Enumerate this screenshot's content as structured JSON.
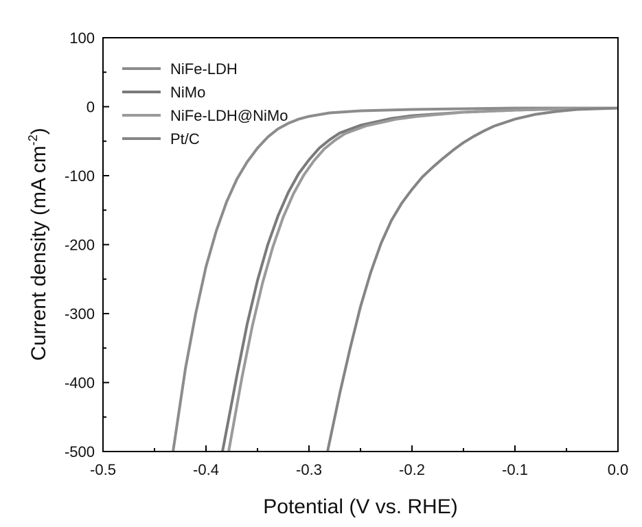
{
  "chart_data": {
    "type": "line",
    "title": "",
    "xlabel": "Potential (V vs. RHE)",
    "ylabel_main": "Current density (mA cm",
    "ylabel_sup": "-2",
    "ylabel_close": ")",
    "xlim": [
      -0.5,
      0.0
    ],
    "ylim": [
      -500,
      100
    ],
    "xticks": [
      -0.5,
      -0.4,
      -0.3,
      -0.2,
      -0.1,
      0.0
    ],
    "xtick_labels": [
      "-0.5",
      "-0.4",
      "-0.3",
      "-0.2",
      "-0.1",
      "0.0"
    ],
    "yticks": [
      100,
      0,
      -100,
      -200,
      -300,
      -400,
      -500
    ],
    "ytick_labels": [
      "100",
      "0",
      "-100",
      "-200",
      "-300",
      "-400",
      "-500"
    ],
    "grid": false,
    "legend_position": "top-left",
    "series": [
      {
        "name": "NiFe-LDH",
        "color": "#8c8c8c",
        "x": [
          -0.432,
          -0.42,
          -0.41,
          -0.4,
          -0.39,
          -0.38,
          -0.37,
          -0.36,
          -0.35,
          -0.34,
          -0.33,
          -0.32,
          -0.31,
          -0.3,
          -0.28,
          -0.25,
          -0.2,
          -0.15,
          -0.1,
          -0.05,
          0.0
        ],
        "y": [
          -500,
          -380,
          -300,
          -232,
          -180,
          -138,
          -105,
          -80,
          -60,
          -44,
          -32,
          -24,
          -18,
          -14,
          -9,
          -6,
          -4,
          -3,
          -2,
          -2,
          -2
        ]
      },
      {
        "name": "NiMo",
        "color": "#7a7a7a",
        "x": [
          -0.384,
          -0.37,
          -0.36,
          -0.35,
          -0.34,
          -0.33,
          -0.32,
          -0.31,
          -0.3,
          -0.29,
          -0.28,
          -0.27,
          -0.25,
          -0.22,
          -0.2,
          -0.15,
          -0.1,
          -0.05,
          0.0
        ],
        "y": [
          -500,
          -390,
          -315,
          -252,
          -200,
          -158,
          -124,
          -97,
          -77,
          -60,
          -48,
          -38,
          -27,
          -17,
          -13,
          -8,
          -5,
          -3,
          -2
        ]
      },
      {
        "name": "NiFe-LDH@NiMo",
        "color": "#9a9a9a",
        "x": [
          -0.378,
          -0.365,
          -0.355,
          -0.345,
          -0.335,
          -0.325,
          -0.315,
          -0.305,
          -0.295,
          -0.285,
          -0.275,
          -0.265,
          -0.245,
          -0.215,
          -0.195,
          -0.15,
          -0.1,
          -0.05,
          0.0
        ],
        "y": [
          -500,
          -392,
          -318,
          -255,
          -203,
          -160,
          -126,
          -99,
          -78,
          -61,
          -49,
          -39,
          -28,
          -18,
          -14,
          -8,
          -5,
          -3,
          -2
        ]
      },
      {
        "name": "Pt/C",
        "color": "#858585",
        "x": [
          -0.282,
          -0.27,
          -0.26,
          -0.25,
          -0.24,
          -0.23,
          -0.22,
          -0.21,
          -0.2,
          -0.19,
          -0.18,
          -0.17,
          -0.16,
          -0.15,
          -0.14,
          -0.13,
          -0.12,
          -0.1,
          -0.08,
          -0.06,
          -0.04,
          -0.02,
          0.0
        ],
        "y": [
          -500,
          -415,
          -350,
          -290,
          -240,
          -198,
          -165,
          -140,
          -120,
          -102,
          -88,
          -75,
          -63,
          -52,
          -43,
          -35,
          -28,
          -18,
          -11,
          -7,
          -4,
          -3,
          -2
        ]
      }
    ]
  }
}
